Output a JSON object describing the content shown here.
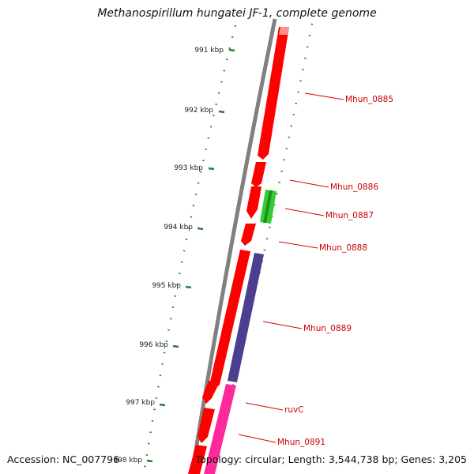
{
  "title": "Methanospirillum hungatei JF-1, complete genome",
  "footer": {
    "accession": "Accession: NC_007796",
    "topology": "Topology: circular; Length: 3,544,738 bp; Genes: 3,205"
  },
  "ticks": [
    "991 kbp",
    "992 kbp",
    "993 kbp",
    "994 kbp",
    "995 kbp",
    "996 kbp",
    "997 kbp",
    "998 kbp"
  ],
  "genes": [
    {
      "name": "Mhun_0885",
      "color": "#ff0000"
    },
    {
      "name": "Mhun_0886",
      "color": "#ff0000"
    },
    {
      "name": "Mhun_0887",
      "color": "#33cc33"
    },
    {
      "name": "Mhun_0888",
      "color": "#ff0000"
    },
    {
      "name": "Mhun_0889",
      "color": "#4b3f8f"
    },
    {
      "name": "ruvC",
      "color": "#ff2a9a"
    },
    {
      "name": "Mhun_0891",
      "color": "#ff0000"
    }
  ],
  "colors": {
    "backbone": "#808080",
    "forward_strand": "#ff0000",
    "tick_marks": "#2e7d32",
    "label_lines": "#dd0000"
  }
}
